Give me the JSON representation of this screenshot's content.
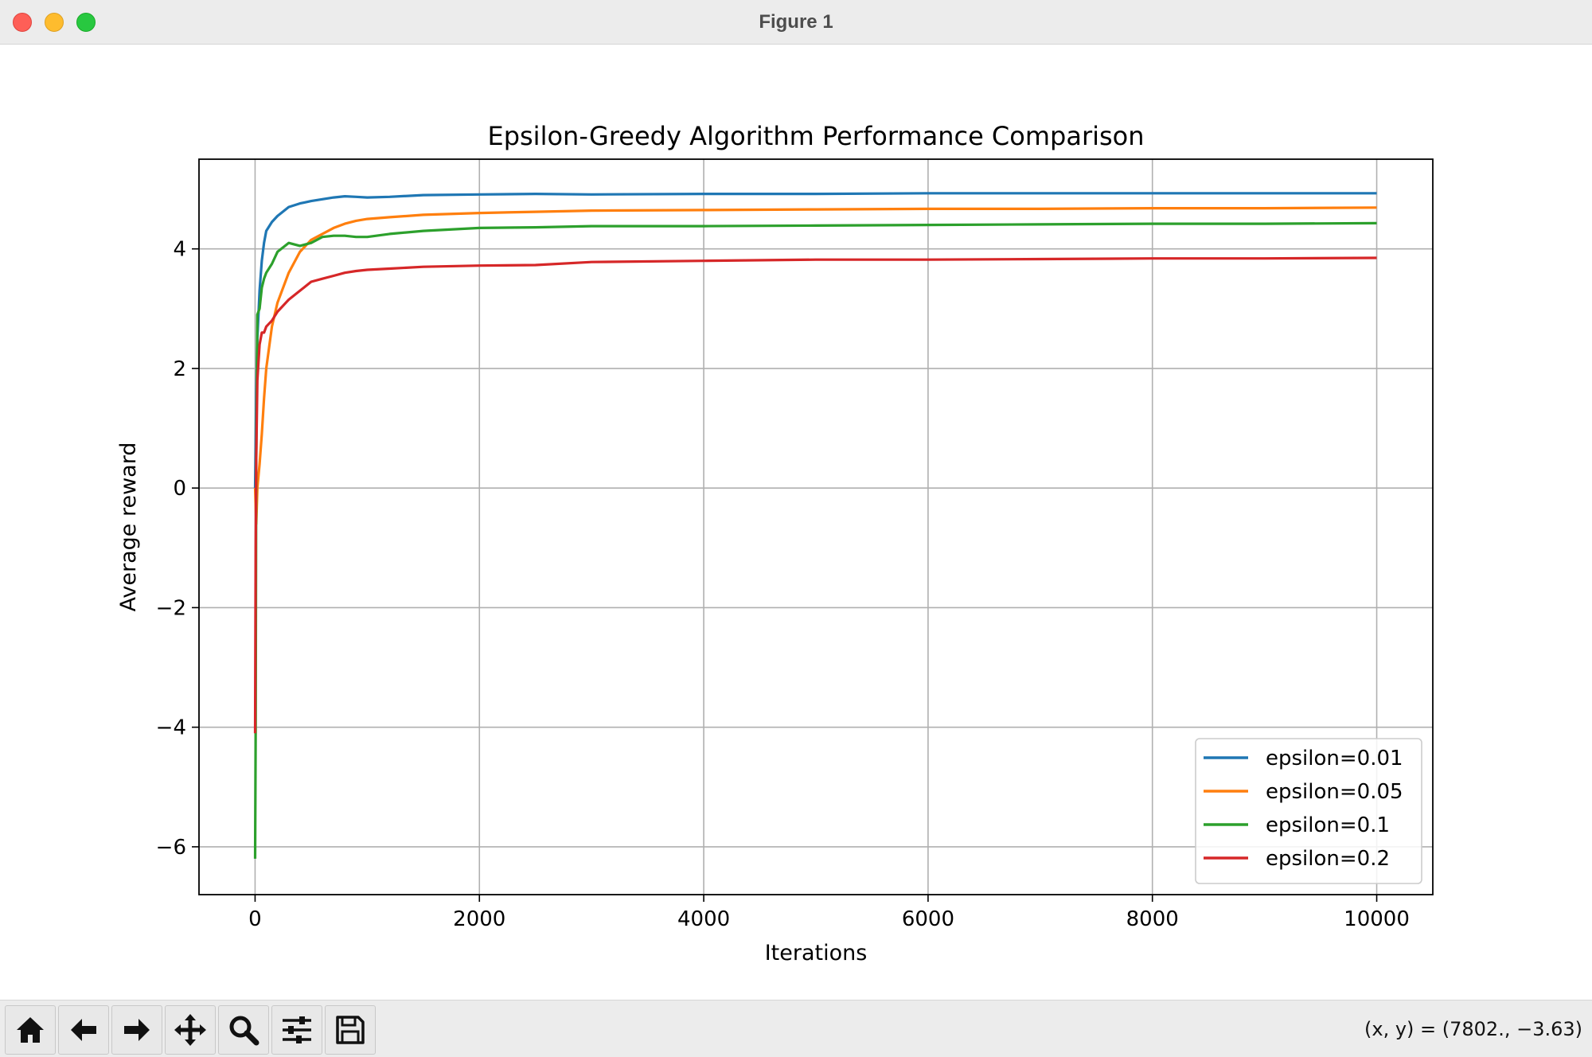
{
  "window": {
    "title": "Figure 1"
  },
  "chart_data": {
    "type": "line",
    "title": "Epsilon-Greedy Algorithm Performance Comparison",
    "xlabel": "Iterations",
    "ylabel": "Average reward",
    "xlim": [
      -500,
      10500
    ],
    "ylim": [
      -6.8,
      5.5
    ],
    "xticks": [
      0,
      2000,
      4000,
      6000,
      8000,
      10000
    ],
    "xtick_labels": [
      "0",
      "2000",
      "4000",
      "6000",
      "8000",
      "10000"
    ],
    "yticks": [
      -6,
      -4,
      -2,
      0,
      2,
      4
    ],
    "ytick_labels": [
      "−6",
      "−4",
      "−2",
      "0",
      "2",
      "4"
    ],
    "grid": true,
    "legend_position": "lower-right",
    "series": [
      {
        "name": "epsilon=0.01",
        "color": "#1f77b4",
        "x": [
          0,
          10,
          20,
          40,
          60,
          80,
          100,
          150,
          200,
          300,
          400,
          500,
          600,
          700,
          800,
          900,
          1000,
          1200,
          1500,
          2000,
          2500,
          3000,
          4000,
          5000,
          6000,
          7000,
          8000,
          9000,
          10000
        ],
        "y": [
          0.0,
          1.6,
          2.5,
          3.3,
          3.8,
          4.1,
          4.3,
          4.45,
          4.55,
          4.7,
          4.76,
          4.8,
          4.83,
          4.86,
          4.88,
          4.87,
          4.86,
          4.87,
          4.9,
          4.91,
          4.92,
          4.91,
          4.92,
          4.92,
          4.93,
          4.93,
          4.93,
          4.93,
          4.93
        ]
      },
      {
        "name": "epsilon=0.05",
        "color": "#ff7f0e",
        "x": [
          0,
          10,
          20,
          40,
          60,
          80,
          100,
          150,
          200,
          300,
          400,
          500,
          600,
          700,
          800,
          900,
          1000,
          1200,
          1500,
          2000,
          2500,
          3000,
          4000,
          5000,
          6000,
          7000,
          8000,
          9000,
          10000
        ],
        "y": [
          0.0,
          -0.6,
          0.0,
          0.4,
          0.9,
          1.5,
          2.0,
          2.7,
          3.1,
          3.6,
          3.95,
          4.15,
          4.25,
          4.35,
          4.42,
          4.47,
          4.5,
          4.53,
          4.57,
          4.6,
          4.62,
          4.64,
          4.65,
          4.66,
          4.67,
          4.67,
          4.68,
          4.68,
          4.69
        ]
      },
      {
        "name": "epsilon=0.1",
        "color": "#2ca02c",
        "x": [
          0,
          5,
          10,
          20,
          40,
          60,
          80,
          100,
          150,
          200,
          300,
          400,
          500,
          600,
          700,
          800,
          900,
          1000,
          1200,
          1500,
          2000,
          2500,
          3000,
          4000,
          5000,
          6000,
          7000,
          8000,
          9000,
          10000
        ],
        "y": [
          -6.2,
          -4.0,
          0.5,
          2.9,
          3.0,
          3.35,
          3.5,
          3.6,
          3.75,
          3.95,
          4.1,
          4.05,
          4.1,
          4.2,
          4.22,
          4.22,
          4.2,
          4.2,
          4.25,
          4.3,
          4.35,
          4.36,
          4.38,
          4.38,
          4.39,
          4.4,
          4.41,
          4.42,
          4.42,
          4.43
        ]
      },
      {
        "name": "epsilon=0.2",
        "color": "#d62728",
        "x": [
          0,
          5,
          10,
          20,
          40,
          60,
          80,
          100,
          150,
          200,
          300,
          400,
          500,
          600,
          700,
          800,
          900,
          1000,
          1200,
          1500,
          2000,
          2500,
          3000,
          4000,
          5000,
          6000,
          7000,
          8000,
          9000,
          10000
        ],
        "y": [
          -4.1,
          -1.0,
          0.5,
          1.8,
          2.4,
          2.6,
          2.6,
          2.7,
          2.8,
          2.95,
          3.15,
          3.3,
          3.45,
          3.5,
          3.55,
          3.6,
          3.63,
          3.65,
          3.67,
          3.7,
          3.72,
          3.73,
          3.78,
          3.8,
          3.82,
          3.82,
          3.83,
          3.84,
          3.84,
          3.85
        ]
      }
    ]
  },
  "toolbar": {
    "buttons": [
      {
        "name": "home-button",
        "icon": "home-icon"
      },
      {
        "name": "back-button",
        "icon": "arrow-left-icon"
      },
      {
        "name": "forward-button",
        "icon": "arrow-right-icon"
      },
      {
        "name": "pan-button",
        "icon": "move-icon"
      },
      {
        "name": "zoom-button",
        "icon": "magnifier-icon"
      },
      {
        "name": "configure-subplots-button",
        "icon": "sliders-icon"
      },
      {
        "name": "save-button",
        "icon": "floppy-disk-icon"
      }
    ],
    "status": "(x, y) = (7802., −3.63)"
  }
}
